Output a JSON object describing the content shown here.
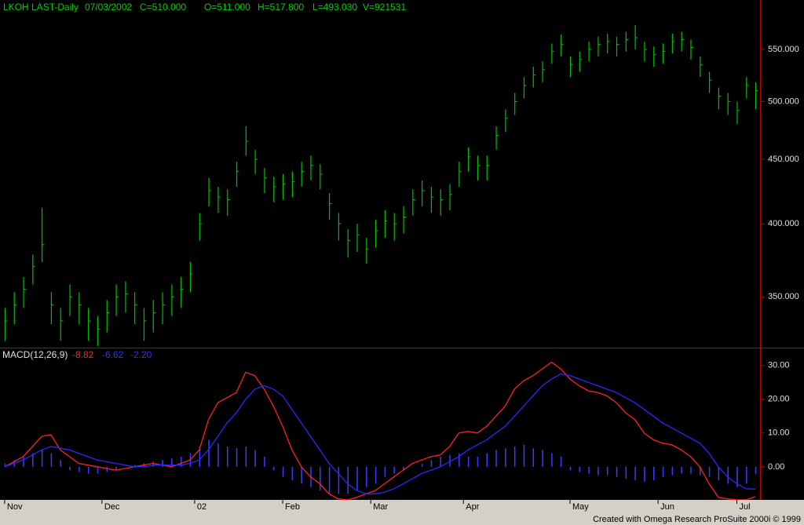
{
  "chart_data": [
    {
      "type": "ohlc",
      "header": [
        "LKOH LAST-Daily",
        "07/03/2002",
        "C=510.000",
        "O=511.000",
        "H=517.800",
        "L=493.030",
        "V=921531"
      ],
      "color": "#00c000",
      "log": true,
      "xlim": [
        -1,
        163
      ],
      "xticks": [
        {
          "value": 0,
          "label": "Nov"
        },
        {
          "value": 21,
          "label": "Dec"
        },
        {
          "value": 41,
          "label": "02"
        },
        {
          "value": 60,
          "label": "Feb"
        },
        {
          "value": 79,
          "label": "Mar"
        },
        {
          "value": 99,
          "label": "Apr"
        },
        {
          "value": 122,
          "label": "May"
        },
        {
          "value": 141,
          "label": "Jun"
        },
        {
          "value": 158,
          "label": "Jul"
        }
      ],
      "ylim": [
        319,
        602
      ],
      "yticks": [
        {
          "value": 350,
          "label": "350.000"
        },
        {
          "value": 400,
          "label": "400.000"
        },
        {
          "value": 450,
          "label": "450.000"
        },
        {
          "value": 500,
          "label": "500.000"
        },
        {
          "value": 550,
          "label": "550.000"
        }
      ],
      "x": [
        0,
        2,
        4,
        6,
        8,
        10,
        12,
        14,
        16,
        18,
        20,
        22,
        24,
        26,
        28,
        30,
        32,
        34,
        36,
        38,
        40,
        42,
        44,
        46,
        48,
        50,
        52,
        54,
        56,
        58,
        60,
        62,
        64,
        66,
        68,
        70,
        72,
        74,
        76,
        78,
        80,
        82,
        84,
        86,
        88,
        90,
        92,
        94,
        96,
        98,
        100,
        102,
        104,
        106,
        108,
        110,
        112,
        114,
        116,
        118,
        120,
        122,
        124,
        126,
        128,
        130,
        132,
        134,
        136,
        138,
        140,
        142,
        144,
        146,
        148,
        150,
        152,
        154,
        156,
        158,
        160,
        162
      ],
      "highs": [
        343,
        353,
        363,
        378,
        412,
        353,
        343,
        358,
        353,
        343,
        338,
        348,
        358,
        360,
        353,
        343,
        348,
        353,
        358,
        363,
        373,
        408,
        435,
        428,
        426,
        448,
        478,
        458,
        443,
        436,
        438,
        440,
        448,
        453,
        446,
        423,
        408,
        396,
        400,
        390,
        403,
        410,
        408,
        413,
        426,
        433,
        428,
        426,
        430,
        448,
        460,
        453,
        453,
        478,
        493,
        508,
        523,
        533,
        538,
        556,
        565,
        543,
        548,
        558,
        563,
        566,
        563,
        568,
        575,
        558,
        553,
        556,
        566,
        568,
        560,
        543,
        528,
        513,
        508,
        500,
        523,
        517.8
      ],
      "lows": [
        323,
        333,
        343,
        358,
        373,
        333,
        323,
        338,
        333,
        323,
        320,
        328,
        338,
        340,
        333,
        323,
        328,
        333,
        338,
        343,
        353,
        388,
        413,
        408,
        406,
        428,
        453,
        438,
        423,
        416,
        418,
        420,
        428,
        433,
        426,
        403,
        388,
        376,
        380,
        372,
        383,
        390,
        388,
        393,
        406,
        413,
        408,
        406,
        410,
        428,
        440,
        433,
        433,
        458,
        473,
        488,
        503,
        513,
        518,
        536,
        543,
        523,
        528,
        538,
        543,
        546,
        543,
        548,
        550,
        538,
        533,
        536,
        546,
        548,
        540,
        523,
        508,
        493,
        488,
        480,
        503,
        493.03
      ],
      "closes": [
        335,
        345,
        355,
        370,
        385,
        345,
        335,
        350,
        345,
        335,
        330,
        340,
        350,
        352,
        345,
        335,
        340,
        345,
        350,
        355,
        365,
        400,
        425,
        420,
        418,
        440,
        465,
        450,
        435,
        428,
        430,
        432,
        440,
        445,
        438,
        415,
        400,
        388,
        392,
        382,
        395,
        402,
        400,
        405,
        418,
        425,
        420,
        418,
        422,
        440,
        452,
        445,
        445,
        470,
        485,
        500,
        515,
        525,
        530,
        548,
        555,
        535,
        540,
        550,
        555,
        558,
        555,
        560,
        562,
        550,
        545,
        548,
        558,
        560,
        552,
        535,
        520,
        505,
        500,
        492,
        515,
        510
      ]
    },
    {
      "type": "macd",
      "label": "MACD(12,26,9)",
      "ylim": [
        -9.8,
        35.3
      ],
      "yticks": [
        {
          "value": 0,
          "label": "0.00"
        },
        {
          "value": 10,
          "label": "10.00"
        },
        {
          "value": 20,
          "label": "20.00"
        },
        {
          "value": 30,
          "label": "30.00"
        }
      ],
      "series": [
        {
          "color": "#ff2020",
          "last_label": "-8.82",
          "values": [
            0,
            1.5,
            3,
            6,
            9,
            9.5,
            5,
            3,
            1,
            0.5,
            0,
            -0.5,
            -1,
            -0.5,
            0,
            0.5,
            1,
            0.5,
            0,
            1,
            2,
            5,
            14,
            19,
            20.5,
            22,
            28,
            27,
            23,
            18,
            12,
            5,
            0,
            -3,
            -5,
            -8,
            -9.5,
            -9.8,
            -9,
            -8,
            -7,
            -5,
            -3,
            -1,
            1,
            2,
            3,
            3.5,
            6,
            10,
            10.5,
            10,
            12,
            15,
            18,
            23,
            25.5,
            27,
            29,
            31,
            29,
            26,
            24,
            22.5,
            22,
            21,
            19,
            16,
            14,
            10,
            8,
            7,
            6.5,
            5,
            3,
            0,
            -5,
            -9,
            -9.5,
            -9.8,
            -9.8,
            -8.82
          ]
        },
        {
          "color": "#2828ff",
          "last_label": "-6.62",
          "values": [
            0,
            1,
            2,
            3.5,
            5,
            6,
            5.5,
            5,
            4,
            3,
            2,
            1.5,
            1,
            0.5,
            0,
            0,
            0.5,
            0.5,
            0.5,
            0.5,
            1,
            2,
            5,
            9,
            13,
            16,
            20,
            23,
            24,
            23,
            21,
            17,
            13,
            9,
            5,
            1,
            -2,
            -5,
            -7,
            -8,
            -8,
            -7.5,
            -6.5,
            -5,
            -3.5,
            -2,
            -1,
            0,
            1.5,
            3,
            5,
            6.5,
            8,
            10,
            12,
            15,
            18,
            21,
            24,
            26,
            27.5,
            27,
            26,
            25,
            24,
            23,
            22,
            20.5,
            19,
            17,
            15,
            13,
            11.5,
            10,
            8.5,
            7,
            4,
            0,
            -3,
            -5,
            -6.5,
            -6.62
          ]
        }
      ],
      "histogram": {
        "color": "#3c3cff",
        "last_label": "-2.20",
        "values": [
          1,
          2,
          3,
          4,
          5,
          4,
          2,
          -1,
          -1.5,
          -2,
          -2,
          -1.5,
          -1,
          0,
          0.5,
          1,
          1.5,
          2,
          2.5,
          3,
          4,
          6,
          8,
          7,
          6,
          5.5,
          6,
          5,
          3,
          -1,
          -3,
          -4,
          -5,
          -6,
          -7,
          -8,
          -8,
          -8,
          -7,
          -6,
          -5,
          -3,
          -2,
          -1,
          0,
          1,
          2,
          3,
          3.5,
          4,
          3,
          3,
          4,
          5,
          5.5,
          6,
          6.5,
          5.5,
          5,
          4,
          3,
          -1,
          -1.5,
          -2,
          -2.5,
          -2.5,
          -3,
          -3.5,
          -4,
          -4.5,
          -4,
          -3,
          -2.5,
          -2,
          -2,
          -2.5,
          -3,
          -4,
          -5,
          -6,
          -5,
          -2.2
        ]
      }
    }
  ],
  "footer": "Created with Omega Research ProSuite 2000i © 1999"
}
